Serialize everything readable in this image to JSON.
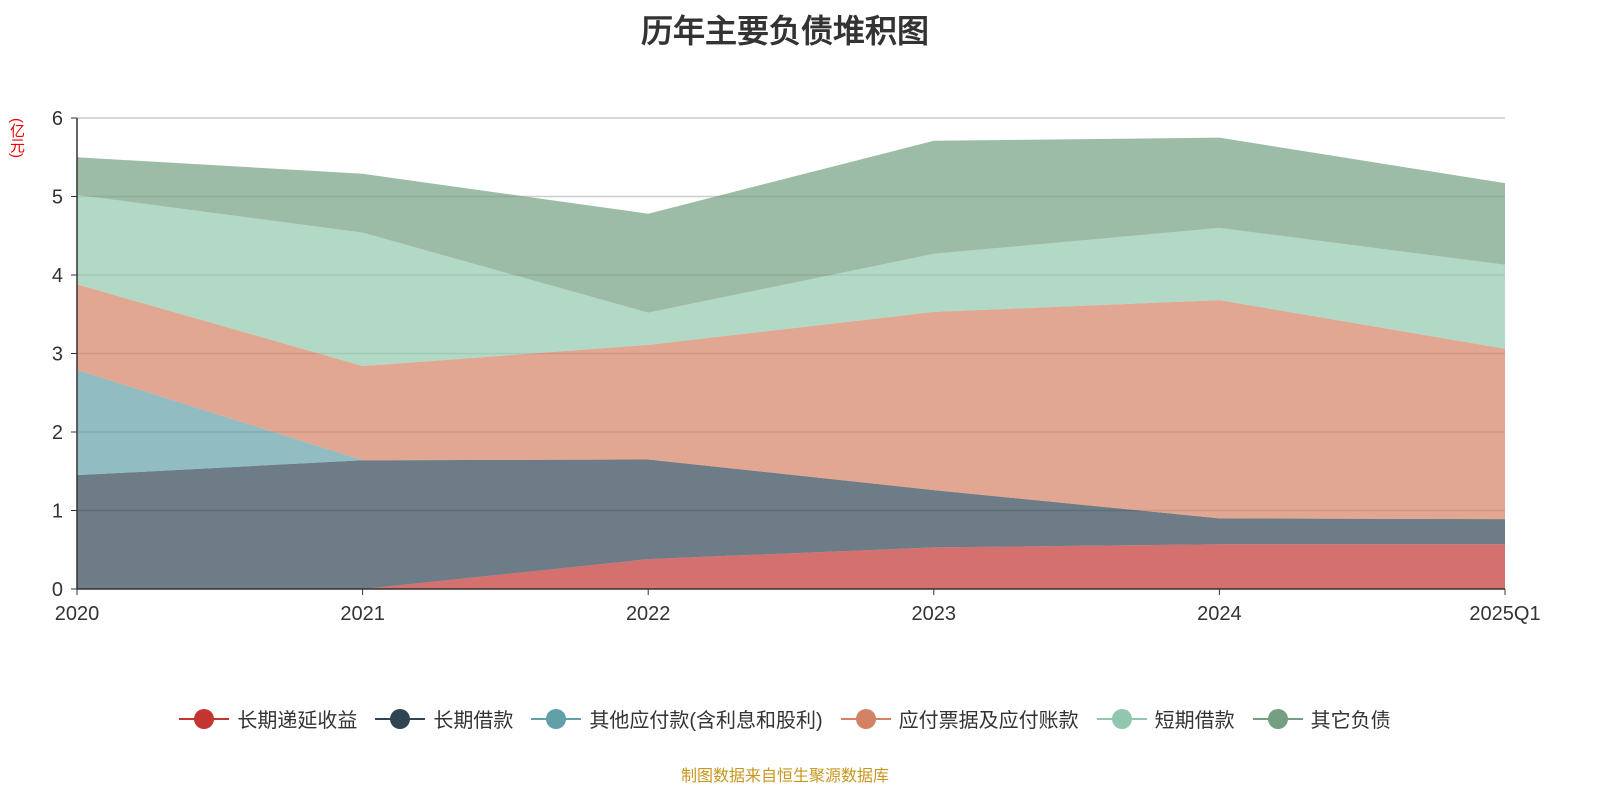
{
  "title": "历年主要负债堆积图",
  "unit": "(亿元)",
  "source": "制图数据来自恒生聚源数据库",
  "chart_data": {
    "type": "area",
    "stacked": true,
    "title": "历年主要负债堆积图",
    "ylabel": "(亿元)",
    "ylim": [
      0,
      6
    ],
    "yticks": [
      "0",
      "1",
      "2",
      "3",
      "4",
      "5",
      "6"
    ],
    "categories": [
      "2020",
      "2021",
      "2022",
      "2023",
      "2024",
      "2025Q1"
    ],
    "grid": true,
    "legend_position": "bottom",
    "series": [
      {
        "name": "长期递延收益",
        "color": "#c23531",
        "values": [
          0,
          0,
          0.38,
          0.53,
          0.57,
          0.57
        ]
      },
      {
        "name": "长期借款",
        "color": "#2f4554",
        "values": [
          1.45,
          1.64,
          1.27,
          0.73,
          0.33,
          0.32
        ]
      },
      {
        "name": "其他应付款(含利息和股利)",
        "color": "#61a0a8",
        "values": [
          1.34,
          0,
          0,
          0,
          0,
          0
        ]
      },
      {
        "name": "应付票据及应付账款",
        "color": "#d48265",
        "values": [
          1.09,
          1.2,
          1.46,
          2.27,
          2.78,
          2.17
        ]
      },
      {
        "name": "短期借款",
        "color": "#91c7ae",
        "values": [
          1.14,
          1.7,
          0.41,
          0.74,
          0.92,
          1.07
        ]
      },
      {
        "name": "其它负债",
        "color": "#749f83",
        "values": [
          0.48,
          0.75,
          1.26,
          1.44,
          1.15,
          1.04
        ]
      }
    ]
  }
}
